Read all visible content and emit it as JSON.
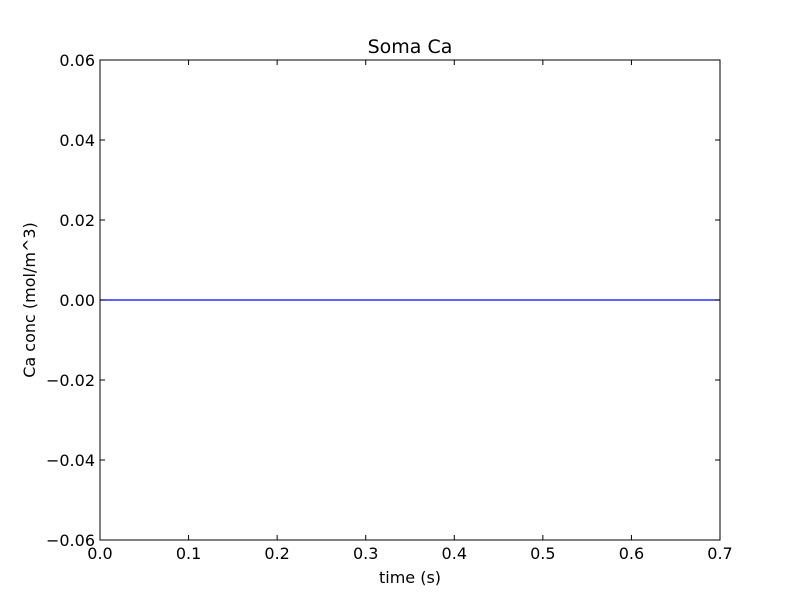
{
  "chart_data": {
    "type": "line",
    "title": "Soma Ca",
    "xlabel": "time (s)",
    "ylabel": "Ca conc (mol/m^3)",
    "xlim": [
      0,
      0.7
    ],
    "ylim": [
      -0.06,
      0.06
    ],
    "x_ticks": [
      0.0,
      0.1,
      0.2,
      0.3,
      0.4,
      0.5,
      0.6,
      0.7
    ],
    "x_tick_labels": [
      "0.0",
      "0.1",
      "0.2",
      "0.3",
      "0.4",
      "0.5",
      "0.6",
      "0.7"
    ],
    "y_ticks": [
      -0.06,
      -0.04,
      -0.02,
      0.0,
      0.02,
      0.04,
      0.06
    ],
    "y_tick_labels": [
      "−0.06",
      "−0.04",
      "−0.02",
      "0.00",
      "0.02",
      "0.04",
      "0.06"
    ],
    "grid": false,
    "series": [
      {
        "color": "#0000ff",
        "x": [
          0.0,
          0.1,
          0.2,
          0.3,
          0.4,
          0.5,
          0.6,
          0.7
        ],
        "y": [
          0,
          0,
          0,
          0,
          0,
          0,
          0,
          0
        ]
      }
    ]
  }
}
